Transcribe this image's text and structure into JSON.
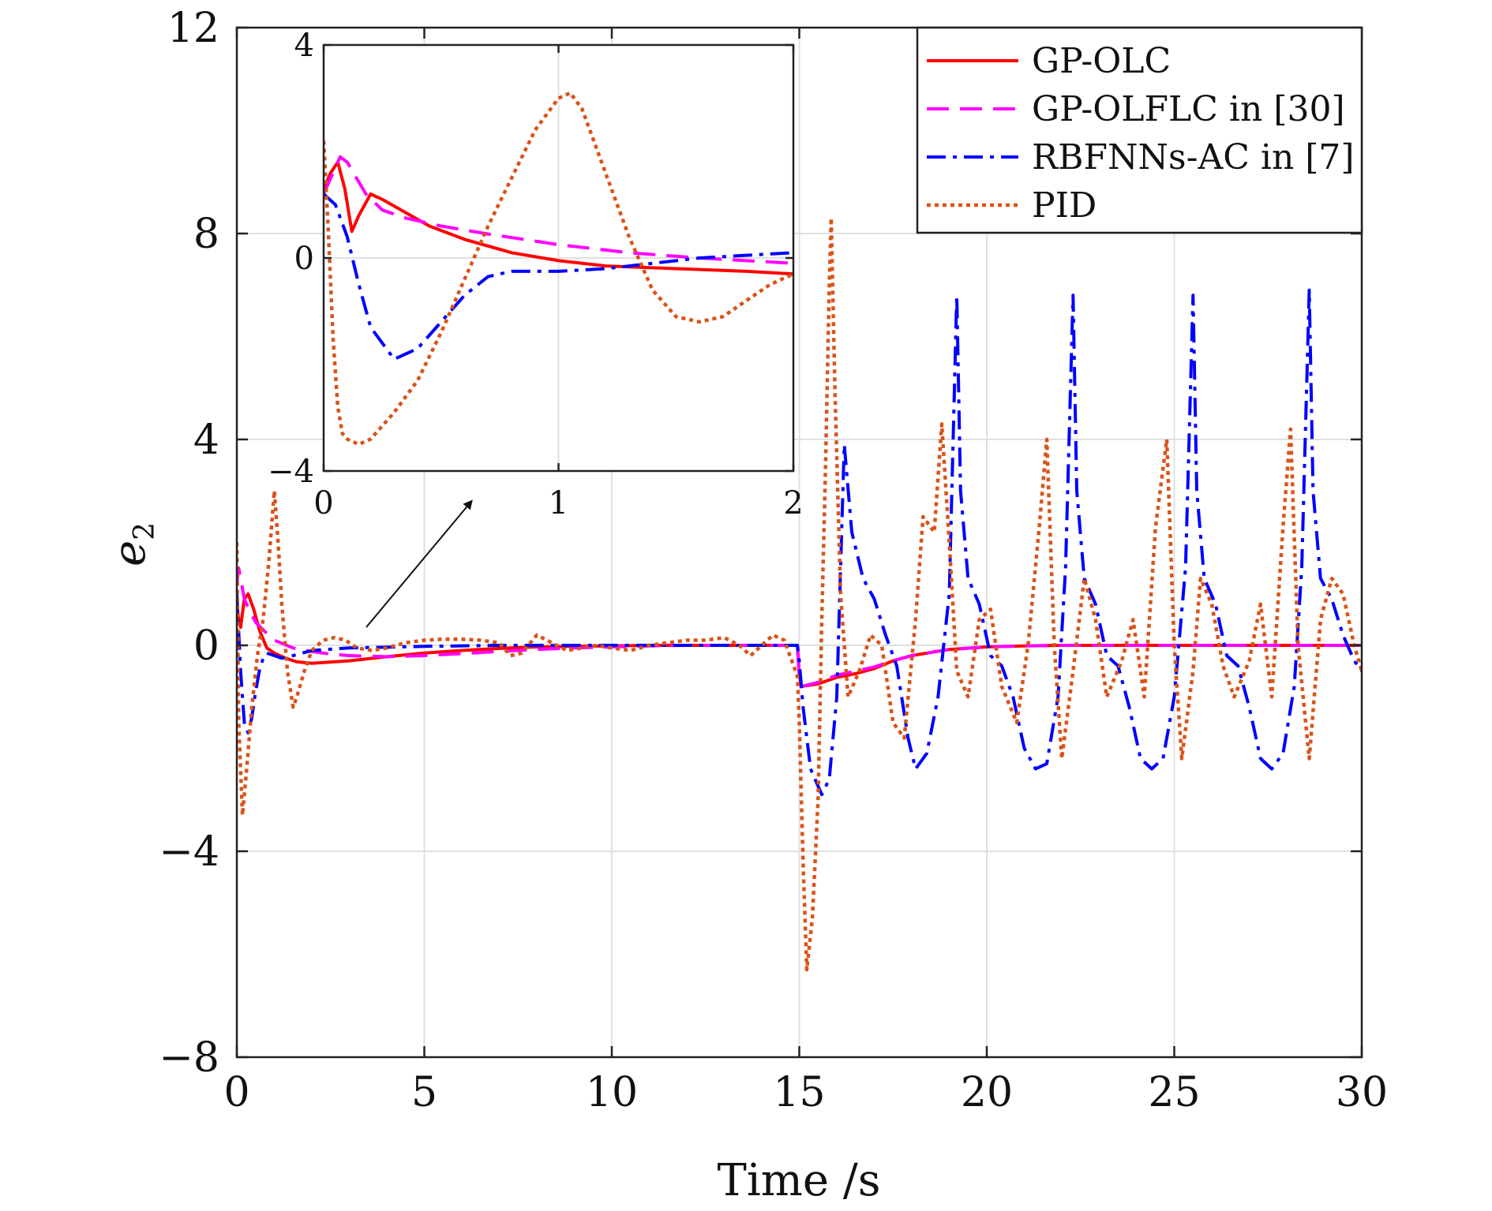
{
  "chart_data": [
    {
      "id": "main",
      "type": "line",
      "xlabel": "Time /s",
      "ylabel": "e",
      "ylabel_sub": "2",
      "xlim": [
        0,
        30
      ],
      "ylim": [
        -8,
        12
      ],
      "xticks": [
        0,
        5,
        10,
        15,
        20,
        25,
        30
      ],
      "yticks": [
        -8,
        -4,
        0,
        4,
        8,
        12
      ],
      "xtick_labels": [
        "0",
        "5",
        "10",
        "15",
        "20",
        "25",
        "30"
      ],
      "ytick_labels": [
        "−8",
        "−4",
        "0",
        "4",
        "8",
        "12"
      ],
      "grid": true,
      "legend_position": "top-right",
      "series": [
        {
          "name": "GP-OLC",
          "color": "#ff0000",
          "style": "solid",
          "x": [
            0,
            0.05,
            0.1,
            0.2,
            0.3,
            0.45,
            0.6,
            0.8,
            1.0,
            1.3,
            1.6,
            2.0,
            3.0,
            4.0,
            5.0,
            6.0,
            7.0,
            8.0,
            9.0,
            10,
            11,
            12,
            13,
            14,
            14.95,
            15.0,
            15.05,
            15.5,
            16,
            16.5,
            17,
            17.5,
            18,
            19,
            20,
            21,
            22,
            23,
            24,
            25,
            26,
            27,
            28,
            29,
            30
          ],
          "y": [
            0.8,
            0.5,
            0.35,
            0.9,
            1.0,
            0.7,
            0.3,
            -0.05,
            -0.15,
            -0.25,
            -0.32,
            -0.35,
            -0.3,
            -0.22,
            -0.15,
            -0.1,
            -0.06,
            -0.03,
            -0.02,
            -0.01,
            0,
            0,
            0,
            0,
            0,
            -0.55,
            -0.8,
            -0.75,
            -0.62,
            -0.55,
            -0.45,
            -0.3,
            -0.2,
            -0.08,
            -0.03,
            -0.01,
            0,
            0,
            0,
            0,
            0,
            0,
            0,
            0,
            0
          ]
        },
        {
          "name": "GP-OLFLC in [30]",
          "color": "#ff00ff",
          "style": "dashed",
          "x": [
            0,
            0.05,
            0.1,
            0.2,
            0.35,
            0.5,
            0.7,
            1.0,
            1.5,
            2.0,
            2.5,
            3.0,
            4.0,
            5.0,
            6.0,
            7.0,
            8.0,
            9.0,
            10,
            11,
            12,
            13,
            14,
            14.95,
            15.0,
            15.05,
            15.5,
            16,
            16.5,
            17,
            17.5,
            18,
            19,
            20,
            21,
            22,
            23,
            24,
            25,
            26,
            27,
            28,
            29,
            30
          ],
          "y": [
            1.2,
            1.5,
            1.3,
            0.9,
            0.65,
            0.45,
            0.3,
            0.1,
            -0.05,
            -0.12,
            -0.17,
            -0.2,
            -0.22,
            -0.2,
            -0.16,
            -0.12,
            -0.08,
            -0.05,
            -0.03,
            -0.01,
            0,
            0,
            0,
            0,
            -0.6,
            -0.8,
            -0.72,
            -0.58,
            -0.5,
            -0.42,
            -0.3,
            -0.2,
            -0.08,
            -0.03,
            -0.01,
            0,
            0,
            0,
            0,
            0,
            0,
            0,
            0,
            0
          ]
        },
        {
          "name": "RBFNNs-AC in [7]",
          "color": "#0000ff",
          "style": "dashdot",
          "x": [
            0,
            0.1,
            0.2,
            0.3,
            0.4,
            0.5,
            0.6,
            0.7,
            0.8,
            1.0,
            1.2,
            1.5,
            2.0,
            3.0,
            5.0,
            7.0,
            9.0,
            11,
            13,
            14.95,
            15.0,
            15.1,
            15.3,
            15.6,
            15.8,
            16.0,
            16.1,
            16.2,
            16.4,
            16.7,
            17.0,
            17.3,
            17.6,
            17.9,
            18.1,
            18.4,
            18.7,
            19.0,
            19.2,
            19.3,
            19.5,
            19.8,
            20.1,
            20.4,
            20.7,
            21.0,
            21.3,
            21.6,
            21.9,
            22.1,
            22.3,
            22.4,
            22.6,
            22.9,
            23.2,
            23.5,
            23.8,
            24.1,
            24.4,
            24.7,
            25.0,
            25.3,
            25.5,
            25.6,
            25.8,
            26.1,
            26.4,
            26.7,
            27.0,
            27.3,
            27.6,
            27.9,
            28.2,
            28.4,
            28.6,
            28.7,
            28.9,
            29.2,
            29.5,
            29.8,
            30.0
          ],
          "y": [
            1.0,
            -0.5,
            -1.5,
            -1.7,
            -1.4,
            -0.9,
            -0.5,
            -0.25,
            -0.15,
            -0.2,
            -0.25,
            -0.2,
            -0.1,
            -0.05,
            -0.02,
            0,
            0,
            0,
            0,
            0,
            -0.3,
            -1.2,
            -2.4,
            -2.9,
            -2.6,
            -1.0,
            1.5,
            3.9,
            2.2,
            1.3,
            0.9,
            0.2,
            -0.4,
            -1.8,
            -2.4,
            -2.1,
            -1.0,
            1.0,
            6.8,
            3.0,
            1.3,
            0.8,
            -0.2,
            -0.4,
            -1.0,
            -2.0,
            -2.4,
            -2.3,
            -1.0,
            1.5,
            6.8,
            3.0,
            1.3,
            0.8,
            -0.2,
            -0.4,
            -1.2,
            -2.2,
            -2.4,
            -2.2,
            -1.0,
            1.5,
            6.8,
            3.0,
            1.3,
            0.8,
            -0.2,
            -0.4,
            -1.2,
            -2.2,
            -2.4,
            -2.1,
            -0.8,
            1.5,
            6.9,
            3.0,
            1.3,
            0.9,
            0.2,
            -0.3,
            -0.5
          ]
        },
        {
          "name": "PID",
          "color": "#d95319",
          "style": "dotted",
          "x": [
            0,
            0.05,
            0.15,
            0.25,
            0.4,
            0.55,
            0.7,
            0.85,
            1.0,
            1.1,
            1.2,
            1.35,
            1.5,
            1.6,
            1.8,
            2.0,
            2.3,
            2.6,
            2.9,
            3.2,
            3.6,
            4.0,
            4.5,
            5,
            5.5,
            6,
            6.5,
            7,
            7.3,
            7.6,
            8,
            8.4,
            8.8,
            9.2,
            9.6,
            10,
            10.5,
            11,
            11.5,
            12,
            12.5,
            13,
            13.4,
            13.7,
            14,
            14.3,
            14.6,
            14.95,
            15.0,
            15.1,
            15.2,
            15.35,
            15.5,
            15.6,
            15.7,
            15.8,
            15.85,
            15.95,
            16.1,
            16.3,
            16.6,
            16.9,
            17.2,
            17.5,
            17.8,
            18.1,
            18.3,
            18.6,
            18.8,
            19.0,
            19.2,
            19.5,
            19.8,
            20.1,
            20.4,
            20.8,
            21.1,
            21.4,
            21.6,
            21.8,
            22.0,
            22.3,
            22.6,
            22.9,
            23.2,
            23.6,
            23.9,
            24.2,
            24.5,
            24.8,
            25.0,
            25.2,
            25.5,
            25.7,
            26.0,
            26.3,
            26.6,
            27.0,
            27.3,
            27.6,
            27.9,
            28.1,
            28.3,
            28.6,
            28.9,
            29.2,
            29.5,
            29.8,
            30.0
          ],
          "y": [
            2.0,
            -1.5,
            -3.3,
            -2.5,
            -1.2,
            -0.2,
            0.5,
            1.6,
            3.0,
            2.0,
            0.8,
            -0.5,
            -1.2,
            -1.0,
            -0.5,
            -0.1,
            0.1,
            0.15,
            0.1,
            -0.05,
            -0.1,
            -0.05,
            0.05,
            0.1,
            0.12,
            0.12,
            0.1,
            0.05,
            -0.2,
            -0.15,
            0.2,
            0.05,
            -0.1,
            -0.05,
            0.0,
            -0.05,
            -0.1,
            0.0,
            0.05,
            0.1,
            0.1,
            0.15,
            0.0,
            -0.2,
            0.0,
            0.2,
            0.1,
            -0.6,
            -1.5,
            -4.2,
            -6.3,
            -5.3,
            -3.0,
            0.5,
            3.5,
            7.0,
            8.3,
            5.0,
            1.0,
            -1.0,
            -0.5,
            0.2,
            0.0,
            -1.5,
            -1.8,
            0.5,
            2.5,
            2.2,
            4.3,
            2.0,
            -0.5,
            -1.0,
            0.5,
            0.7,
            -0.8,
            -1.5,
            0.0,
            2.3,
            4.0,
            0.0,
            -2.2,
            -0.5,
            1.3,
            0.5,
            -1.0,
            -0.3,
            0.5,
            -1.0,
            2.3,
            4.0,
            0.0,
            -2.2,
            -0.5,
            1.3,
            0.8,
            -0.4,
            -1.0,
            -0.3,
            0.8,
            -1.0,
            2.3,
            4.2,
            0.0,
            -2.2,
            0.5,
            1.3,
            1.0,
            0.0,
            -0.5
          ]
        }
      ]
    },
    {
      "id": "inset",
      "type": "line",
      "xlim": [
        0,
        2
      ],
      "ylim": [
        -4,
        4
      ],
      "xticks": [
        0,
        1,
        2
      ],
      "yticks": [
        -4,
        0,
        4
      ],
      "xtick_labels": [
        "0",
        "1",
        "2"
      ],
      "ytick_labels": [
        "−4",
        "0",
        "4"
      ],
      "grid": true,
      "series": [
        {
          "name": "GP-OLC",
          "color": "#ff0000",
          "style": "solid",
          "x": [
            0,
            0.03,
            0.06,
            0.09,
            0.12,
            0.15,
            0.2,
            0.25,
            0.35,
            0.45,
            0.6,
            0.8,
            1.0,
            1.2,
            1.5,
            1.8,
            2.0
          ],
          "y": [
            1.3,
            1.6,
            1.8,
            1.3,
            0.5,
            0.8,
            1.2,
            1.1,
            0.85,
            0.6,
            0.35,
            0.1,
            -0.05,
            -0.15,
            -0.2,
            -0.25,
            -0.3
          ]
        },
        {
          "name": "GP-OLFLC in [30]",
          "color": "#ff00ff",
          "style": "dashed",
          "x": [
            0,
            0.03,
            0.07,
            0.1,
            0.14,
            0.18,
            0.25,
            0.35,
            0.5,
            0.7,
            1.0,
            1.3,
            1.6,
            2.0
          ],
          "y": [
            1.2,
            1.5,
            1.9,
            1.8,
            1.5,
            1.2,
            0.9,
            0.75,
            0.6,
            0.45,
            0.25,
            0.1,
            0.0,
            -0.1
          ]
        },
        {
          "name": "RBFNNs-AC in [7]",
          "color": "#0000ff",
          "style": "dashdot",
          "x": [
            0,
            0.05,
            0.1,
            0.15,
            0.2,
            0.3,
            0.4,
            0.5,
            0.6,
            0.7,
            0.8,
            0.9,
            1.0,
            1.2,
            1.4,
            1.6,
            1.8,
            2.0
          ],
          "y": [
            1.2,
            1.0,
            0.4,
            -0.5,
            -1.3,
            -1.9,
            -1.7,
            -1.2,
            -0.7,
            -0.35,
            -0.25,
            -0.25,
            -0.25,
            -0.2,
            -0.1,
            0.0,
            0.05,
            0.1
          ]
        },
        {
          "name": "PID",
          "color": "#d95319",
          "style": "dotted",
          "x": [
            0,
            0.02,
            0.04,
            0.06,
            0.08,
            0.1,
            0.15,
            0.2,
            0.3,
            0.4,
            0.5,
            0.6,
            0.7,
            0.8,
            0.9,
            1.0,
            1.05,
            1.1,
            1.2,
            1.3,
            1.4,
            1.5,
            1.6,
            1.7,
            1.8,
            1.9,
            2.0
          ],
          "y": [
            2.2,
            0.5,
            -1.5,
            -2.8,
            -3.3,
            -3.4,
            -3.5,
            -3.4,
            -2.9,
            -2.3,
            -1.4,
            -0.4,
            0.6,
            1.5,
            2.4,
            3.0,
            3.1,
            2.8,
            1.6,
            0.4,
            -0.6,
            -1.1,
            -1.2,
            -1.1,
            -0.8,
            -0.5,
            -0.3
          ]
        }
      ]
    }
  ]
}
